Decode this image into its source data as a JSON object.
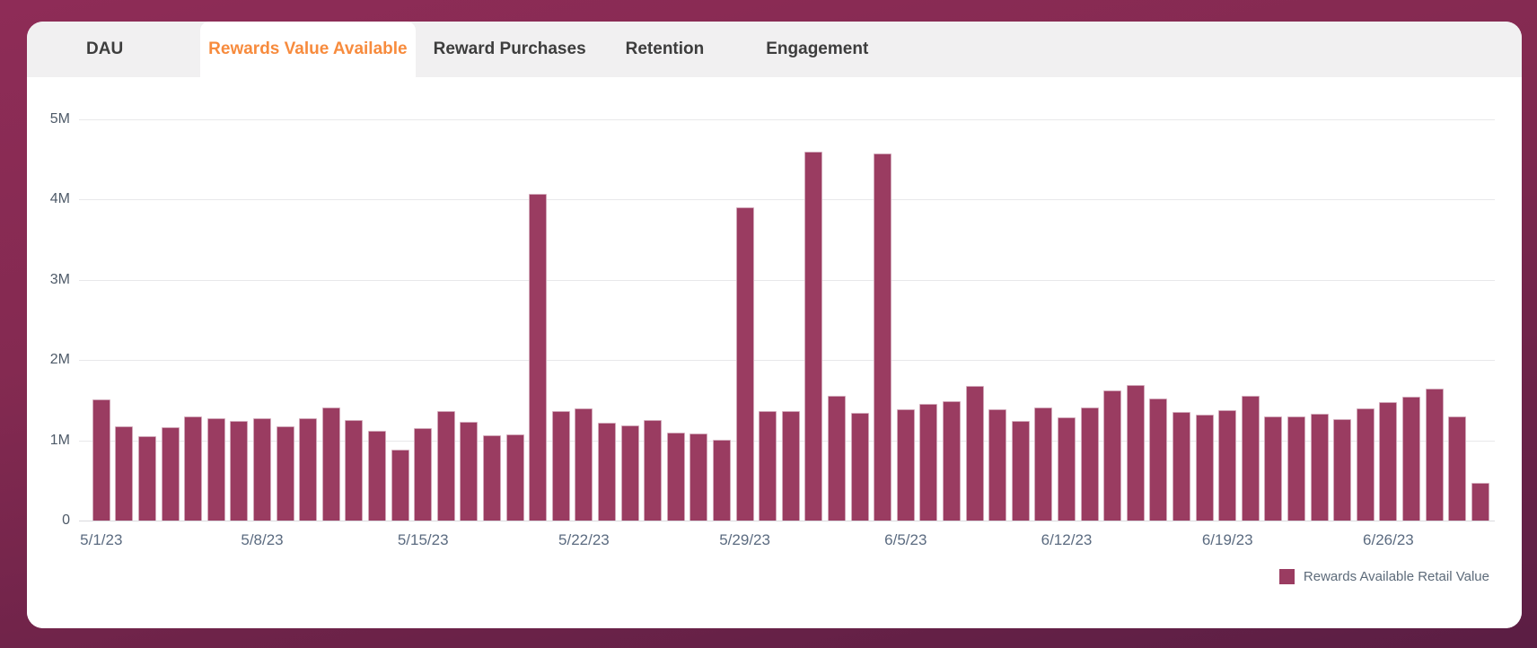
{
  "tabs": {
    "items": [
      {
        "label": "DAU",
        "active": false
      },
      {
        "label": "Rewards Value Available",
        "active": true
      },
      {
        "label": "Reward Purchases",
        "active": false
      },
      {
        "label": "Retention",
        "active": false
      },
      {
        "label": "Engagement",
        "active": false
      }
    ],
    "active_color": "#f78b3d",
    "inactive_color": "#3d3d3d"
  },
  "chart_data": {
    "type": "bar",
    "title": "",
    "xlabel": "",
    "ylabel": "",
    "unit": "millions",
    "ylim_millions": [
      0,
      5
    ],
    "grid": true,
    "legend_position": "bottom-right",
    "series_name": "Rewards Available Retail Value",
    "bar_color": "#9a3c61",
    "y_ticks": [
      "5M",
      "4M",
      "3M",
      "2M",
      "1M",
      "0"
    ],
    "x_tick_indices": [
      0,
      7,
      14,
      21,
      28,
      35,
      42,
      49,
      56
    ],
    "x": [
      "5/1/23",
      "5/2/23",
      "5/3/23",
      "5/4/23",
      "5/5/23",
      "5/6/23",
      "5/7/23",
      "5/8/23",
      "5/9/23",
      "5/10/23",
      "5/11/23",
      "5/12/23",
      "5/13/23",
      "5/14/23",
      "5/15/23",
      "5/16/23",
      "5/17/23",
      "5/18/23",
      "5/19/23",
      "5/20/23",
      "5/21/23",
      "5/22/23",
      "5/23/23",
      "5/24/23",
      "5/25/23",
      "5/26/23",
      "5/27/23",
      "5/28/23",
      "5/29/23",
      "5/30/23",
      "5/31/23",
      "6/1/23",
      "6/2/23",
      "6/3/23",
      "6/4/23",
      "6/5/23",
      "6/6/23",
      "6/7/23",
      "6/8/23",
      "6/9/23",
      "6/10/23",
      "6/11/23",
      "6/12/23",
      "6/13/23",
      "6/14/23",
      "6/15/23",
      "6/16/23",
      "6/17/23",
      "6/18/23",
      "6/19/23",
      "6/20/23",
      "6/21/23",
      "6/22/23",
      "6/23/23",
      "6/24/23",
      "6/25/23",
      "6/26/23",
      "6/27/23",
      "6/28/23",
      "6/29/23",
      "6/30/23"
    ],
    "values_millions": [
      1.51,
      1.17,
      1.05,
      1.16,
      1.3,
      1.28,
      1.24,
      1.28,
      1.18,
      1.27,
      1.41,
      1.25,
      1.12,
      0.88,
      1.15,
      1.36,
      1.23,
      1.06,
      1.07,
      4.07,
      1.37,
      1.4,
      1.22,
      1.19,
      1.25,
      1.1,
      1.08,
      1.01,
      3.9,
      1.36,
      1.37,
      4.6,
      1.55,
      1.34,
      4.58,
      1.39,
      1.45,
      1.49,
      1.68,
      1.39,
      1.24,
      1.41,
      1.29,
      1.41,
      1.62,
      1.69,
      1.52,
      1.35,
      1.32,
      1.38,
      1.55,
      1.3,
      1.3,
      1.33,
      1.26,
      1.4,
      1.48,
      1.54,
      1.64,
      1.3,
      0.47
    ]
  }
}
